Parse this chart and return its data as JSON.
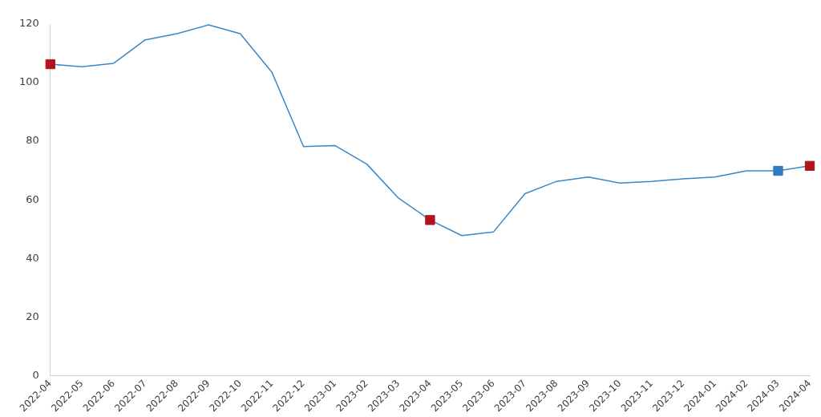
{
  "chart_data": {
    "type": "line",
    "categories": [
      "2022-04",
      "2022-05",
      "2022-06",
      "2022-07",
      "2022-08",
      "2022-09",
      "2022-10",
      "2022-11",
      "2022-12",
      "2023-01",
      "2023-02",
      "2023-03",
      "2023-04",
      "2023-05",
      "2023-06",
      "2023-07",
      "2023-08",
      "2023-09",
      "2023-10",
      "2023-11",
      "2023-12",
      "2024-01",
      "2024-02",
      "2024-03",
      "2024-04"
    ],
    "series": [
      {
        "color": "#3a87c6",
        "marker": "none",
        "values": [
          106.3,
          105.4,
          106.6,
          114.6,
          116.7,
          119.7,
          116.7,
          103.6,
          78.2,
          78.5,
          72.2,
          60.6,
          53.1,
          47.8,
          49.0,
          62.1,
          66.3,
          67.8,
          65.7,
          66.3,
          67.2,
          67.8,
          69.9,
          69.9,
          71.6
        ]
      },
      {
        "type": "scatter",
        "color": "#b0151e",
        "marker": "square",
        "values": [
          106.3,
          null,
          null,
          null,
          null,
          null,
          null,
          null,
          null,
          null,
          null,
          null,
          53.1,
          null,
          null,
          null,
          null,
          null,
          null,
          null,
          null,
          null,
          null,
          null,
          71.6
        ]
      },
      {
        "type": "scatter",
        "color": "#2f7bbf",
        "marker": "square",
        "values": [
          null,
          null,
          null,
          null,
          null,
          null,
          null,
          null,
          null,
          null,
          null,
          null,
          null,
          null,
          null,
          null,
          null,
          null,
          null,
          null,
          null,
          null,
          null,
          69.9,
          null
        ]
      }
    ],
    "ylim": [
      0,
      120
    ],
    "yticks": [
      0,
      20,
      40,
      60,
      80,
      100,
      120
    ],
    "grid": false,
    "legend": false
  }
}
